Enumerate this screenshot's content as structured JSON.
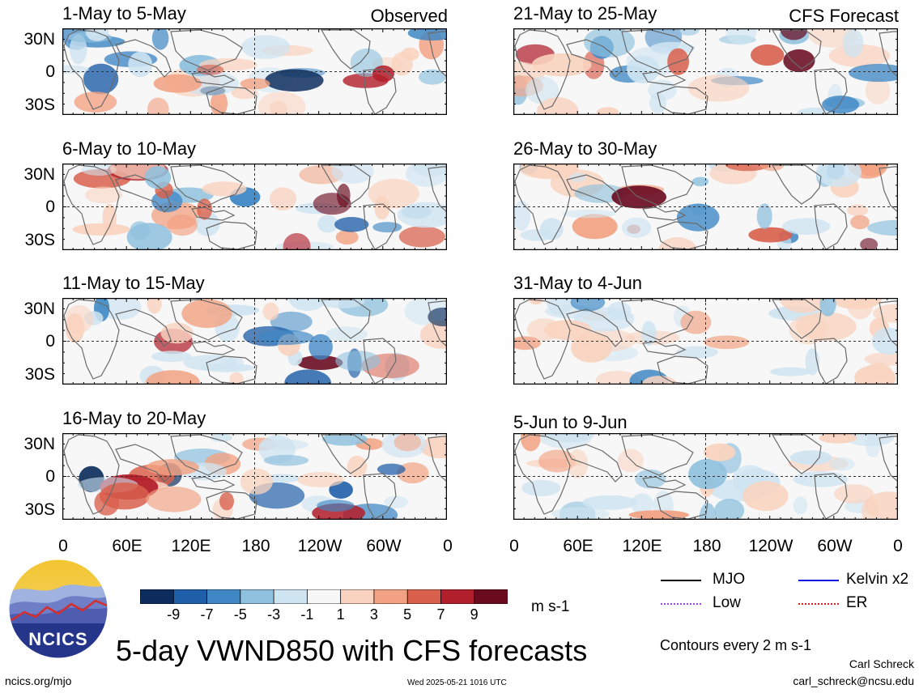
{
  "panels": [
    {
      "title": "1-May to 5-May",
      "tag": "Observed",
      "intensity": 1.0,
      "seed": 11
    },
    {
      "title": "6-May to 10-May",
      "tag": "",
      "intensity": 1.0,
      "seed": 23
    },
    {
      "title": "11-May to 15-May",
      "tag": "",
      "intensity": 0.9,
      "seed": 37
    },
    {
      "title": "16-May to 20-May",
      "tag": "",
      "intensity": 1.0,
      "seed": 41
    },
    {
      "title": "21-May to 25-May",
      "tag": "CFS Forecast",
      "intensity": 1.0,
      "seed": 53
    },
    {
      "title": "26-May to 30-May",
      "tag": "",
      "intensity": 0.95,
      "seed": 67
    },
    {
      "title": "31-May to 4-Jun",
      "tag": "",
      "intensity": 0.55,
      "seed": 71
    },
    {
      "title": "5-Jun to 9-Jun",
      "tag": "",
      "intensity": 0.4,
      "seed": 89
    }
  ],
  "lat_labels": [
    "30N",
    "0",
    "30S"
  ],
  "lon_labels": [
    "0",
    "60E",
    "120E",
    "180",
    "120W",
    "60W",
    "0"
  ],
  "colorbar": {
    "colors": [
      "#0b2c5c",
      "#1f5ea8",
      "#3f88c5",
      "#8fc1de",
      "#cfe4f1",
      "#f7f7f7",
      "#f9d3bf",
      "#f2a283",
      "#d9604c",
      "#b21f2c",
      "#6a0a1f"
    ],
    "labels": [
      "-9",
      "-7",
      "-5",
      "-3",
      "-1",
      "1",
      "3",
      "5",
      "7",
      "9"
    ],
    "unit": "m s-1"
  },
  "legend": [
    {
      "label": "MJO",
      "color": "#000000"
    },
    {
      "label": "Kelvin x2",
      "color": "#1010e0"
    },
    {
      "label": "Low",
      "color": "#a040e0"
    },
    {
      "label": "ER",
      "color": "#e02020"
    }
  ],
  "title": "5-day VWND850 with CFS forecasts",
  "contours_note": "Contours every 2 m s-1",
  "author": "Carl Schreck",
  "email": "carl_schreck@ncsu.edu",
  "website": "ncics.org/mjo",
  "timestamp": "Wed 2025-05-21 1016 UTC",
  "logo_text": "NCICS"
}
